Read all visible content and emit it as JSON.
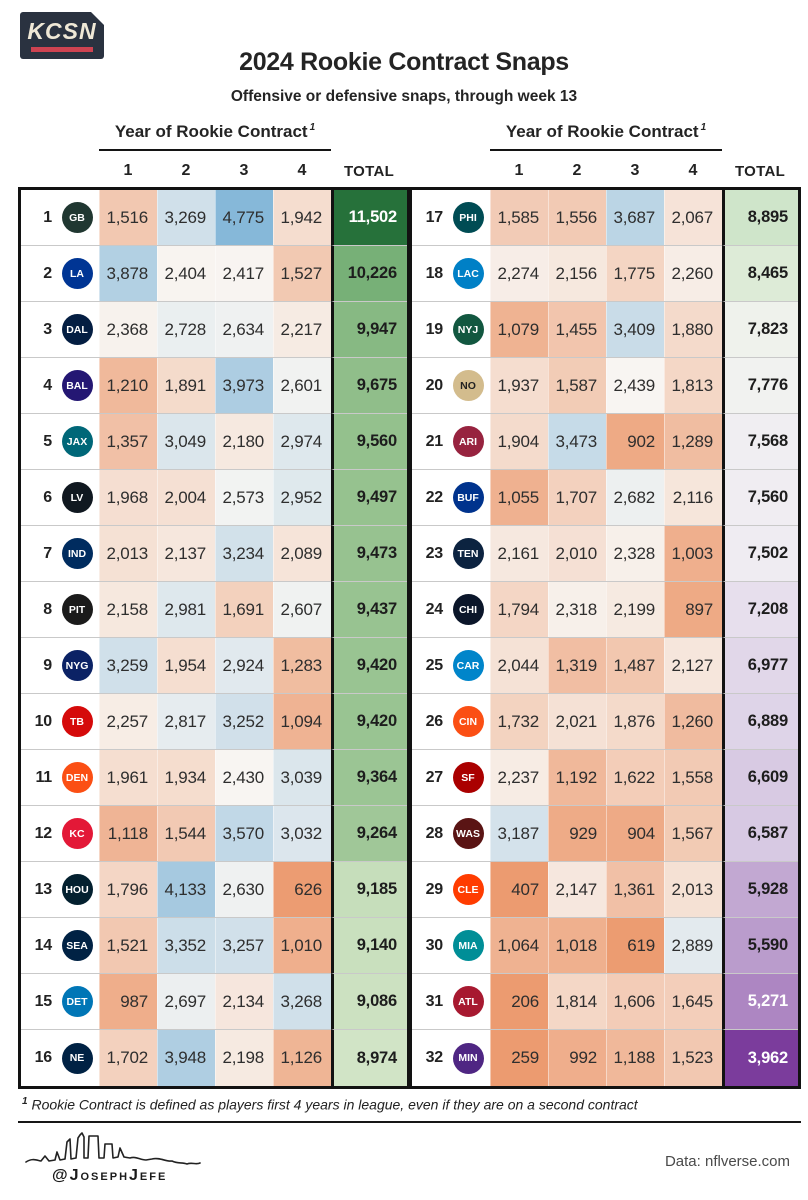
{
  "branding": {
    "logo_text": "KCSN",
    "logo_bg": "#2A3240",
    "logo_accent": "#CE4351"
  },
  "header": {
    "title": "2024 Rookie Contract Snaps",
    "subtitle": "Offensive or defensive snaps, through week 13"
  },
  "chart_data": {
    "type": "heatmap",
    "title": "2024 Rookie Contract Snaps",
    "subtitle": "Offensive or defensive snaps, through week 13",
    "group_header": "Year of Rookie Contract",
    "footnote_mark": "1",
    "columns": [
      "1",
      "2",
      "3",
      "4"
    ],
    "total_label": "TOTAL",
    "cell_scale": {
      "low": "#EC9B70",
      "mid": "#F8F6F3",
      "high": "#85B7D9",
      "domain": [
        600,
        2450,
        4800
      ]
    },
    "rows": [
      {
        "rank": 1,
        "team": "Green Bay Packers",
        "abbr": "GB",
        "logo_color": "#203731",
        "values": [
          1516,
          3269,
          4775,
          1942
        ],
        "total": 11502,
        "total_bg": "#26713A"
      },
      {
        "rank": 2,
        "team": "Los Angeles Rams",
        "abbr": "LA",
        "logo_color": "#003594",
        "values": [
          3878,
          2404,
          2417,
          1527
        ],
        "total": 10226,
        "total_bg": "#77B077"
      },
      {
        "rank": 3,
        "team": "Dallas Cowboys",
        "abbr": "DAL",
        "logo_color": "#041E42",
        "values": [
          2368,
          2728,
          2634,
          2217
        ],
        "total": 9947,
        "total_bg": "#87B983"
      },
      {
        "rank": 4,
        "team": "Baltimore Ravens",
        "abbr": "BAL",
        "logo_color": "#241773",
        "values": [
          1210,
          1891,
          3973,
          2601
        ],
        "total": 9675,
        "total_bg": "#90BE8A"
      },
      {
        "rank": 5,
        "team": "Jacksonville Jaguars",
        "abbr": "JAX",
        "logo_color": "#006778",
        "values": [
          1357,
          3049,
          2180,
          2974
        ],
        "total": 9560,
        "total_bg": "#94C18D"
      },
      {
        "rank": 6,
        "team": "Las Vegas Raiders",
        "abbr": "LV",
        "logo_color": "#101820",
        "values": [
          1968,
          2004,
          2573,
          2952
        ],
        "total": 9497,
        "total_bg": "#96C28F"
      },
      {
        "rank": 7,
        "team": "Indianapolis Colts",
        "abbr": "IND",
        "logo_color": "#002C5F",
        "values": [
          2013,
          2137,
          3234,
          2089
        ],
        "total": 9473,
        "total_bg": "#97C290"
      },
      {
        "rank": 8,
        "team": "Pittsburgh Steelers",
        "abbr": "PIT",
        "logo_color": "#1B1B1B",
        "values": [
          2158,
          2981,
          1691,
          2607
        ],
        "total": 9437,
        "total_bg": "#98C391"
      },
      {
        "rank": 9,
        "team": "New York Giants",
        "abbr": "NYG",
        "logo_color": "#0B2265",
        "values": [
          3259,
          1954,
          2924,
          1283
        ],
        "total": 9420,
        "total_bg": "#99C492"
      },
      {
        "rank": 10,
        "team": "Tampa Bay Buccaneers",
        "abbr": "TB",
        "logo_color": "#D50A0A",
        "values": [
          2257,
          2817,
          3252,
          1094
        ],
        "total": 9420,
        "total_bg": "#99C492"
      },
      {
        "rank": 11,
        "team": "Denver Broncos",
        "abbr": "DEN",
        "logo_color": "#FB4F14",
        "values": [
          1961,
          1934,
          2430,
          3039
        ],
        "total": 9364,
        "total_bg": "#9BC594"
      },
      {
        "rank": 12,
        "team": "Kansas City Chiefs",
        "abbr": "KC",
        "logo_color": "#E31837",
        "values": [
          1118,
          1544,
          3570,
          3032
        ],
        "total": 9264,
        "total_bg": "#A0C798"
      },
      {
        "rank": 13,
        "team": "Houston Texans",
        "abbr": "HOU",
        "logo_color": "#03202F",
        "values": [
          1796,
          4133,
          2630,
          626
        ],
        "total": 9185,
        "total_bg": "#C6DEBB"
      },
      {
        "rank": 14,
        "team": "Seattle Seahawks",
        "abbr": "SEA",
        "logo_color": "#002244",
        "values": [
          1521,
          3352,
          3257,
          1010
        ],
        "total": 9140,
        "total_bg": "#C9E0BE"
      },
      {
        "rank": 15,
        "team": "Detroit Lions",
        "abbr": "DET",
        "logo_color": "#0076B6",
        "values": [
          987,
          2697,
          2134,
          3268
        ],
        "total": 9086,
        "total_bg": "#CCE1C1"
      },
      {
        "rank": 16,
        "team": "New England Patriots",
        "abbr": "NE",
        "logo_color": "#002244",
        "values": [
          1702,
          3948,
          2198,
          1126
        ],
        "total": 8974,
        "total_bg": "#D1E4C6"
      },
      {
        "rank": 17,
        "team": "Philadelphia Eagles",
        "abbr": "PHI",
        "logo_color": "#004C54",
        "values": [
          1585,
          1556,
          3687,
          2067
        ],
        "total": 8895,
        "total_bg": "#CFE5CA"
      },
      {
        "rank": 18,
        "team": "Los Angeles Chargers",
        "abbr": "LAC",
        "logo_color": "#0080C6",
        "values": [
          2274,
          2156,
          1775,
          2260
        ],
        "total": 8465,
        "total_bg": "#DDEBD7"
      },
      {
        "rank": 19,
        "team": "New York Jets",
        "abbr": "NYJ",
        "logo_color": "#125740",
        "values": [
          1079,
          1455,
          3409,
          1880
        ],
        "total": 7823,
        "total_bg": "#EFF2EC"
      },
      {
        "rank": 20,
        "team": "New Orleans Saints",
        "abbr": "NO",
        "logo_color": "#D3BC8D",
        "values": [
          1937,
          1587,
          2439,
          1813
        ],
        "total": 7776,
        "total_bg": "#F1F2F0"
      },
      {
        "rank": 21,
        "team": "Arizona Cardinals",
        "abbr": "ARI",
        "logo_color": "#97233F",
        "values": [
          1904,
          3473,
          902,
          1289
        ],
        "total": 7568,
        "total_bg": "#F0EEF2"
      },
      {
        "rank": 22,
        "team": "Buffalo Bills",
        "abbr": "BUF",
        "logo_color": "#00338D",
        "values": [
          1055,
          1707,
          2682,
          2116
        ],
        "total": 7560,
        "total_bg": "#F0EDF2"
      },
      {
        "rank": 23,
        "team": "Tennessee Titans",
        "abbr": "TEN",
        "logo_color": "#0C2340",
        "values": [
          2161,
          2010,
          2328,
          1003
        ],
        "total": 7502,
        "total_bg": "#EFECF2"
      },
      {
        "rank": 24,
        "team": "Chicago Bears",
        "abbr": "CHI",
        "logo_color": "#0B162A",
        "values": [
          1794,
          2318,
          2199,
          897
        ],
        "total": 7208,
        "total_bg": "#E7DFED"
      },
      {
        "rank": 25,
        "team": "Carolina Panthers",
        "abbr": "CAR",
        "logo_color": "#0085CA",
        "values": [
          2044,
          1319,
          1487,
          2127
        ],
        "total": 6977,
        "total_bg": "#E1D7E9"
      },
      {
        "rank": 26,
        "team": "Cincinnati Bengals",
        "abbr": "CIN",
        "logo_color": "#FB4F14",
        "values": [
          1732,
          2021,
          1876,
          1260
        ],
        "total": 6889,
        "total_bg": "#DED4E8"
      },
      {
        "rank": 27,
        "team": "San Francisco 49ers",
        "abbr": "SF",
        "logo_color": "#AA0000",
        "values": [
          2237,
          1192,
          1622,
          1558
        ],
        "total": 6609,
        "total_bg": "#D8CAE3"
      },
      {
        "rank": 28,
        "team": "Washington Commanders",
        "abbr": "WAS",
        "logo_color": "#5A1414",
        "values": [
          3187,
          929,
          904,
          1567
        ],
        "total": 6587,
        "total_bg": "#D7C9E3"
      },
      {
        "rank": 29,
        "team": "Cleveland Browns",
        "abbr": "CLE",
        "logo_color": "#FF3C00",
        "values": [
          407,
          2147,
          1361,
          2013
        ],
        "total": 5928,
        "total_bg": "#C2A8D2"
      },
      {
        "rank": 30,
        "team": "Miami Dolphins",
        "abbr": "MIA",
        "logo_color": "#008E97",
        "values": [
          1064,
          1018,
          619,
          2889
        ],
        "total": 5590,
        "total_bg": "#BA9CCC"
      },
      {
        "rank": 31,
        "team": "Atlanta Falcons",
        "abbr": "ATL",
        "logo_color": "#A71930",
        "values": [
          206,
          1814,
          1606,
          1645
        ],
        "total": 5271,
        "total_bg": "#AD86C2"
      },
      {
        "rank": 32,
        "team": "Minnesota Vikings",
        "abbr": "MIN",
        "logo_color": "#4F2683",
        "values": [
          259,
          992,
          1188,
          1523
        ],
        "total": 3962,
        "total_bg": "#7B3C9C"
      }
    ]
  },
  "footnote": {
    "mark": "1",
    "text": "Rookie Contract is defined as players first 4 years in league, even if they are on a second contract"
  },
  "footer": {
    "credit": "@JosephJefe",
    "source": "Data: nflverse.com"
  }
}
